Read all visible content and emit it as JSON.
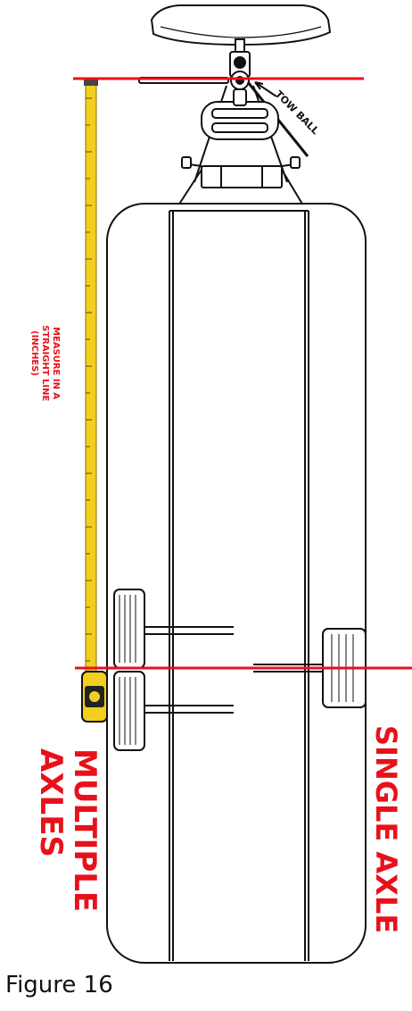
{
  "labels": {
    "tow_ball": "TOW BALL",
    "measure_line1": "MEASURE IN A",
    "measure_line2": "STRAIGHT LINE",
    "measure_line3": "(INCHES)",
    "multiple_line1": "MULTIPLE",
    "multiple_line2": "AXLES",
    "single": "SINGLE AXLE",
    "caption": "Figure 16"
  },
  "colors": {
    "accent_red": "#e8111b",
    "tape_yellow": "#f2cf1f",
    "ink": "#111111"
  }
}
